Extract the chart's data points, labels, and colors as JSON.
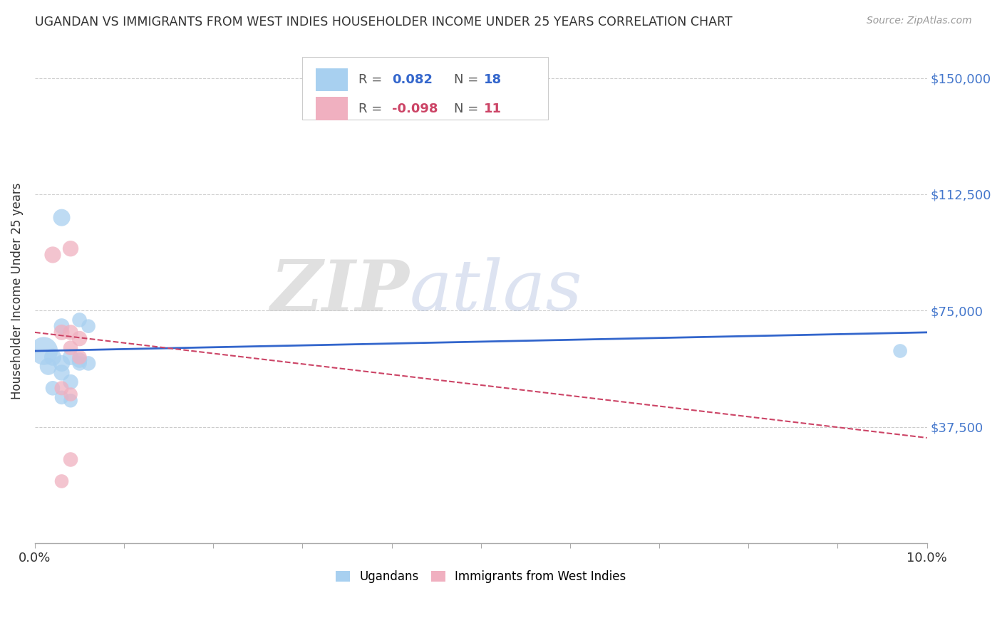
{
  "title": "UGANDAN VS IMMIGRANTS FROM WEST INDIES HOUSEHOLDER INCOME UNDER 25 YEARS CORRELATION CHART",
  "source": "Source: ZipAtlas.com",
  "ylabel": "Householder Income Under 25 years",
  "xlim": [
    0.0,
    0.1
  ],
  "ylim": [
    0,
    162500
  ],
  "xtick_values": [
    0.0,
    0.01,
    0.02,
    0.03,
    0.04,
    0.05,
    0.06,
    0.07,
    0.08,
    0.09,
    0.1
  ],
  "xtick_labels_shown": {
    "0.0": "0.0%",
    "0.10": "10.0%"
  },
  "ytick_values": [
    37500,
    75000,
    112500,
    150000
  ],
  "ytick_labels": [
    "$37,500",
    "$75,000",
    "$112,500",
    "$150,000"
  ],
  "ugandan_R": "0.082",
  "ugandan_N": "18",
  "westindies_R": "-0.098",
  "westindies_N": "11",
  "legend_label_blue": "Ugandans",
  "legend_label_pink": "Immigrants from West Indies",
  "blue_color": "#a8d0f0",
  "pink_color": "#f0b0c0",
  "blue_line_color": "#3366cc",
  "pink_line_color": "#cc4466",
  "watermark_zip": "ZIP",
  "watermark_atlas": "atlas",
  "blue_line_y0": 62000,
  "blue_line_y1": 68000,
  "pink_line_y0": 68000,
  "pink_line_y1": 34000,
  "ugandan_points": [
    [
      0.0015,
      57000,
      300
    ],
    [
      0.003,
      70000,
      250
    ],
    [
      0.005,
      72000,
      220
    ],
    [
      0.006,
      70000,
      200
    ],
    [
      0.001,
      62000,
      800
    ],
    [
      0.002,
      60000,
      300
    ],
    [
      0.003,
      58000,
      280
    ],
    [
      0.004,
      60000,
      260
    ],
    [
      0.005,
      59000,
      240
    ],
    [
      0.006,
      58000,
      220
    ],
    [
      0.003,
      55000,
      260
    ],
    [
      0.004,
      52000,
      240
    ],
    [
      0.005,
      58000,
      220
    ],
    [
      0.002,
      50000,
      220
    ],
    [
      0.003,
      47000,
      200
    ],
    [
      0.004,
      46000,
      200
    ],
    [
      0.003,
      105000,
      300
    ],
    [
      0.097,
      62000,
      200
    ]
  ],
  "westindies_points": [
    [
      0.002,
      93000,
      280
    ],
    [
      0.004,
      95000,
      260
    ],
    [
      0.003,
      68000,
      250
    ],
    [
      0.004,
      68000,
      240
    ],
    [
      0.005,
      66000,
      240
    ],
    [
      0.004,
      63000,
      220
    ],
    [
      0.005,
      60000,
      220
    ],
    [
      0.003,
      50000,
      210
    ],
    [
      0.004,
      48000,
      200
    ],
    [
      0.004,
      27000,
      220
    ],
    [
      0.003,
      20000,
      200
    ]
  ]
}
